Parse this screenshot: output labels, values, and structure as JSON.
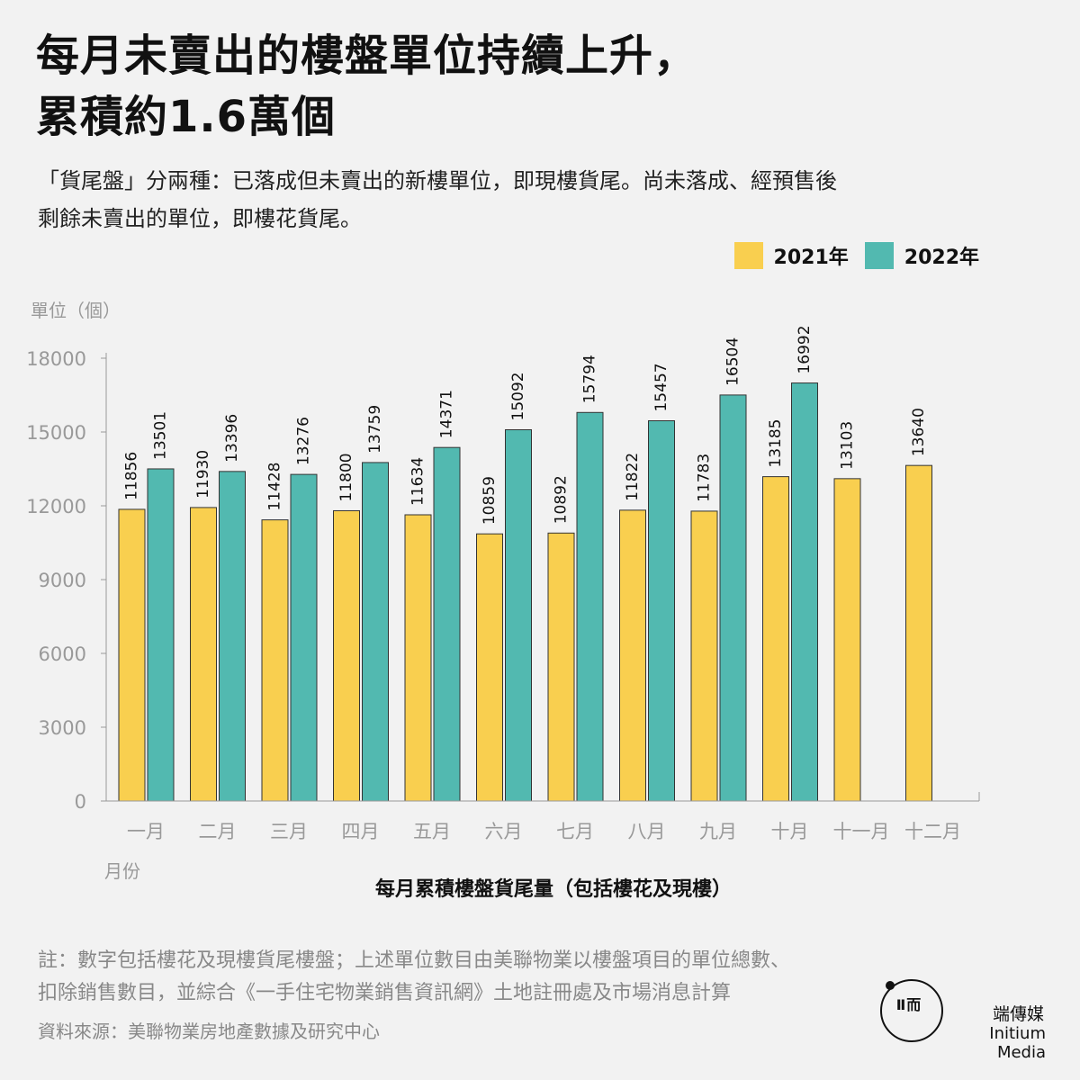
{
  "title": {
    "line1": "每月未賣出的樓盤單位持續上升，",
    "line2": "累積約1.6萬個"
  },
  "subtitle": {
    "line1": "「貨尾盤」分兩種：已落成但未賣出的新樓單位，即現樓貨尾。尚未落成、經預售後",
    "line2": "剩餘未賣出的單位，即樓花貨尾。"
  },
  "legend": {
    "item1": "2021年",
    "item2": "2022年"
  },
  "colors": {
    "series_2021": "#f9cf4f",
    "series_2022": "#52b9b0",
    "axis": "#999999",
    "tick_text": "#999999"
  },
  "chart_data": {
    "type": "bar",
    "title": "每月累積樓盤貨尾量（包括樓花及現樓）",
    "xlabel": "月份",
    "ylabel": "單位（個）",
    "ylim": [
      0,
      18000
    ],
    "yticks": [
      0,
      3000,
      6000,
      9000,
      12000,
      15000,
      18000
    ],
    "categories": [
      "一月",
      "二月",
      "三月",
      "四月",
      "五月",
      "六月",
      "七月",
      "八月",
      "九月",
      "十月",
      "十一月",
      "十二月"
    ],
    "series": [
      {
        "name": "2021年",
        "color": "#f9cf4f",
        "values": [
          11856,
          11930,
          11428,
          11800,
          11634,
          10859,
          10892,
          11822,
          11783,
          13185,
          13103,
          13640
        ]
      },
      {
        "name": "2022年",
        "color": "#52b9b0",
        "values": [
          13501,
          13396,
          13276,
          13759,
          14371,
          15092,
          15794,
          15457,
          16504,
          16992,
          null,
          null
        ]
      }
    ],
    "grid": false,
    "legend_position": "top-right"
  },
  "footnote": {
    "line1": "註：數字包括樓花及現樓貨尾樓盤；上述單位數目由美聯物業以樓盤項目的單位總數、",
    "line2": "扣除銷售數目，並綜合《一手住宅物業銷售資訊網》土地註冊處及市場消息計算"
  },
  "source": "資料來源：美聯物業房地產數據及研究中心",
  "brand": {
    "logo_text": "Ⅱ而",
    "name_zh": "端傳媒",
    "name_en": "Initium Media"
  }
}
